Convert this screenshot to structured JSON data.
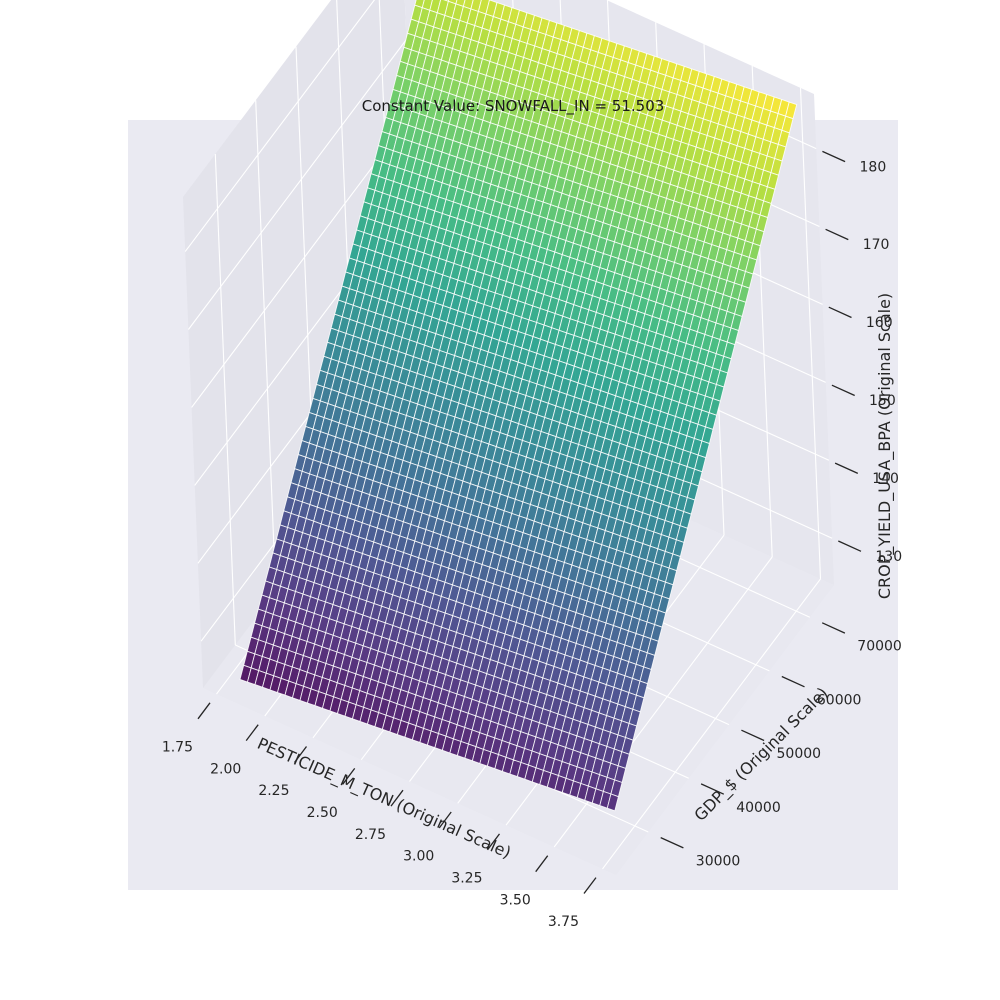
{
  "chart_data": {
    "type": "surface",
    "title": "Constant Value: SNOWFALL_IN = 51.503",
    "xlabel": "PESTICIDE_M_TON (Original Scale)",
    "ylabel": "GDP_$ (Original Scale)",
    "zlabel": "CROP_YIELD_USA_BPA (Original Scale)",
    "x_ticks": [
      "1.75",
      "2.00",
      "2.25",
      "2.50",
      "2.75",
      "3.00",
      "3.25",
      "3.50",
      "3.75"
    ],
    "y_ticks": [
      "30000",
      "40000",
      "50000",
      "60000",
      "70000"
    ],
    "z_ticks": [
      "130",
      "140",
      "150",
      "160",
      "170",
      "180"
    ],
    "xlim": [
      1.68,
      3.82
    ],
    "ylim": [
      22000,
      76000
    ],
    "zlim": [
      124,
      187
    ],
    "grid": true,
    "colormap": "viridis",
    "surface": {
      "x_range": [
        1.81,
        3.76
      ],
      "y_range": [
        25000,
        74500
      ],
      "z_corners": {
        "x_min_y_min": 124.5,
        "x_max_y_min": 129.5,
        "x_min_y_max": 180.5,
        "x_max_y_max": 186.0
      },
      "grid_resolution": 50
    },
    "colors": {
      "background": "#ffffff",
      "axes_background": "#eaeaf2",
      "pane_left": "#e3e3eb",
      "pane_back": "#e6e6ee",
      "pane_floor": "#e8e8f0",
      "grid": "#ffffff",
      "mesh_edge": "#ffffff"
    }
  }
}
